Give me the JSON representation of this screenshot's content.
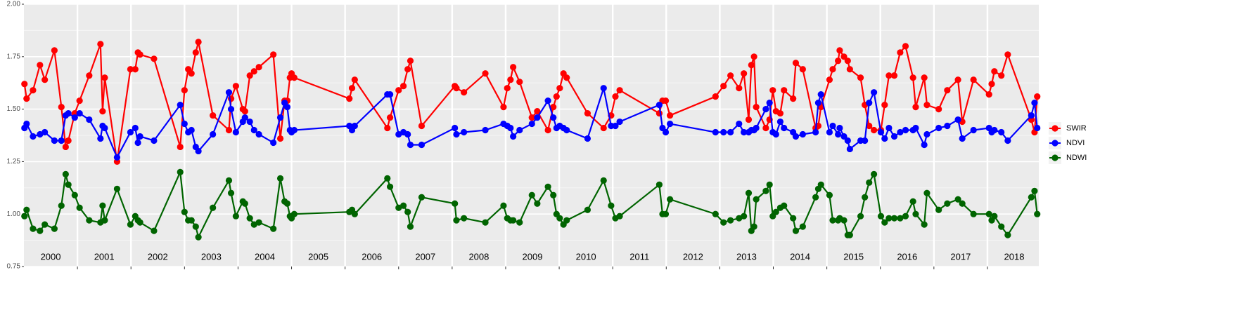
{
  "chart_data": {
    "type": "line",
    "x": [
      2000.01,
      2000.05,
      2000.17,
      2000.3,
      2000.39,
      2000.57,
      2000.7,
      2000.78,
      2000.83,
      2000.95,
      2001.04,
      2001.22,
      2001.43,
      2001.47,
      2001.51,
      2001.74,
      2001.99,
      2002.08,
      2002.13,
      2002.17,
      2002.43,
      2002.92,
      2003.0,
      2003.07,
      2003.13,
      2003.21,
      2003.26,
      2003.53,
      2003.83,
      2003.87,
      2003.96,
      2004.09,
      2004.13,
      2004.22,
      2004.3,
      2004.39,
      2004.66,
      2004.79,
      2004.87,
      2004.92,
      2004.97,
      2005.0,
      2005.05,
      2006.08,
      2006.13,
      2006.18,
      2006.79,
      2006.84,
      2007.0,
      2007.09,
      2007.17,
      2007.22,
      2007.43,
      2008.05,
      2008.08,
      2008.22,
      2008.62,
      2008.96,
      2009.03,
      2009.09,
      2009.14,
      2009.26,
      2009.49,
      2009.59,
      2009.79,
      2009.89,
      2009.95,
      2010.01,
      2010.08,
      2010.14,
      2010.53,
      2010.83,
      2010.97,
      2011.05,
      2011.13,
      2011.87,
      2011.93,
      2011.99,
      2012.07,
      2012.92,
      2013.07,
      2013.2,
      2013.36,
      2013.45,
      2013.54,
      2013.59,
      2013.64,
      2013.68,
      2013.86,
      2013.93,
      2013.99,
      2014.05,
      2014.13,
      2014.2,
      2014.37,
      2014.42,
      2014.55,
      2014.79,
      2014.84,
      2014.89,
      2015.05,
      2015.11,
      2015.21,
      2015.24,
      2015.32,
      2015.39,
      2015.43,
      2015.63,
      2015.71,
      2015.79,
      2015.88,
      2016.01,
      2016.08,
      2016.16,
      2016.26,
      2016.37,
      2016.47,
      2016.61,
      2016.66,
      2016.82,
      2016.87,
      2017.09,
      2017.25,
      2017.45,
      2017.53,
      2017.74,
      2018.03,
      2018.08,
      2018.13,
      2018.26,
      2018.38,
      2018.82,
      2018.88,
      2018.93
    ],
    "series": [
      {
        "name": "SWIR",
        "color": "#ff0000",
        "values": [
          1.62,
          1.55,
          1.59,
          1.71,
          1.64,
          1.78,
          1.51,
          1.32,
          1.35,
          1.48,
          1.54,
          1.66,
          1.81,
          1.49,
          1.65,
          1.25,
          1.69,
          1.69,
          1.77,
          1.76,
          1.74,
          1.32,
          1.59,
          1.69,
          1.67,
          1.77,
          1.82,
          1.47,
          1.4,
          1.55,
          1.61,
          1.5,
          1.49,
          1.66,
          1.68,
          1.7,
          1.76,
          1.36,
          1.54,
          1.54,
          1.65,
          1.67,
          1.65,
          1.55,
          1.6,
          1.64,
          1.41,
          1.46,
          1.59,
          1.61,
          1.69,
          1.73,
          1.42,
          1.61,
          1.6,
          1.58,
          1.67,
          1.51,
          1.6,
          1.64,
          1.7,
          1.63,
          1.46,
          1.49,
          1.4,
          1.51,
          1.56,
          1.6,
          1.67,
          1.65,
          1.48,
          1.41,
          1.47,
          1.56,
          1.59,
          1.48,
          1.54,
          1.54,
          1.47,
          1.56,
          1.61,
          1.66,
          1.6,
          1.67,
          1.45,
          1.71,
          1.75,
          1.51,
          1.41,
          1.45,
          1.59,
          1.49,
          1.48,
          1.59,
          1.55,
          1.72,
          1.69,
          1.41,
          1.42,
          1.51,
          1.64,
          1.69,
          1.73,
          1.78,
          1.75,
          1.73,
          1.69,
          1.65,
          1.52,
          1.42,
          1.4,
          1.4,
          1.52,
          1.66,
          1.66,
          1.77,
          1.8,
          1.65,
          1.51,
          1.65,
          1.52,
          1.5,
          1.59,
          1.64,
          1.44,
          1.64,
          1.57,
          1.62,
          1.68,
          1.66,
          1.76,
          1.45,
          1.39,
          1.56
        ]
      },
      {
        "name": "NDVI",
        "color": "#0000ff",
        "values": [
          1.41,
          1.43,
          1.37,
          1.38,
          1.39,
          1.35,
          1.35,
          1.47,
          1.48,
          1.46,
          1.48,
          1.45,
          1.36,
          1.42,
          1.41,
          1.27,
          1.39,
          1.41,
          1.34,
          1.37,
          1.35,
          1.52,
          1.43,
          1.39,
          1.4,
          1.32,
          1.3,
          1.38,
          1.58,
          1.5,
          1.39,
          1.44,
          1.46,
          1.44,
          1.4,
          1.38,
          1.34,
          1.46,
          1.53,
          1.51,
          1.4,
          1.39,
          1.4,
          1.42,
          1.4,
          1.42,
          1.57,
          1.57,
          1.38,
          1.39,
          1.38,
          1.33,
          1.33,
          1.41,
          1.38,
          1.39,
          1.4,
          1.43,
          1.42,
          1.41,
          1.37,
          1.4,
          1.43,
          1.46,
          1.54,
          1.46,
          1.41,
          1.42,
          1.41,
          1.4,
          1.36,
          1.6,
          1.42,
          1.42,
          1.44,
          1.52,
          1.41,
          1.39,
          1.43,
          1.39,
          1.39,
          1.39,
          1.43,
          1.39,
          1.39,
          1.4,
          1.4,
          1.41,
          1.5,
          1.53,
          1.39,
          1.38,
          1.44,
          1.41,
          1.39,
          1.37,
          1.38,
          1.39,
          1.53,
          1.57,
          1.39,
          1.42,
          1.38,
          1.41,
          1.37,
          1.35,
          1.31,
          1.35,
          1.35,
          1.53,
          1.58,
          1.39,
          1.36,
          1.41,
          1.37,
          1.39,
          1.4,
          1.4,
          1.41,
          1.33,
          1.38,
          1.41,
          1.42,
          1.45,
          1.36,
          1.4,
          1.41,
          1.39,
          1.4,
          1.39,
          1.35,
          1.47,
          1.53,
          1.41
        ]
      },
      {
        "name": "NDWI",
        "color": "#006400",
        "values": [
          0.99,
          1.02,
          0.93,
          0.92,
          0.95,
          0.93,
          1.04,
          1.19,
          1.14,
          1.09,
          1.03,
          0.97,
          0.96,
          1.04,
          0.97,
          1.12,
          0.95,
          0.99,
          0.97,
          0.96,
          0.92,
          1.2,
          1.01,
          0.97,
          0.97,
          0.94,
          0.89,
          1.03,
          1.16,
          1.1,
          0.99,
          1.06,
          1.05,
          0.98,
          0.95,
          0.96,
          0.93,
          1.17,
          1.06,
          1.05,
          0.99,
          0.98,
          1.0,
          1.01,
          1.02,
          1.0,
          1.17,
          1.13,
          1.03,
          1.04,
          1.01,
          0.94,
          1.08,
          1.05,
          0.97,
          0.98,
          0.96,
          1.04,
          0.98,
          0.97,
          0.97,
          0.96,
          1.09,
          1.05,
          1.13,
          1.09,
          1.0,
          0.98,
          0.95,
          0.97,
          1.02,
          1.16,
          1.04,
          0.98,
          0.99,
          1.14,
          1.0,
          1.0,
          1.07,
          1.0,
          0.96,
          0.97,
          0.98,
          0.99,
          1.1,
          0.92,
          0.94,
          1.07,
          1.11,
          1.14,
          0.99,
          1.01,
          1.03,
          1.04,
          0.98,
          0.92,
          0.94,
          1.08,
          1.12,
          1.14,
          1.09,
          0.97,
          0.97,
          0.98,
          0.97,
          0.9,
          0.9,
          0.99,
          1.08,
          1.15,
          1.19,
          0.99,
          0.96,
          0.98,
          0.98,
          0.98,
          0.99,
          1.06,
          1.0,
          0.95,
          1.1,
          1.02,
          1.05,
          1.07,
          1.05,
          1.0,
          1.0,
          0.97,
          0.99,
          0.94,
          0.9,
          1.08,
          1.11,
          1.0
        ]
      }
    ],
    "xlim": [
      2000,
      2018.96
    ],
    "xticks": [
      2001,
      2002,
      2003,
      2004,
      2005,
      2006,
      2007,
      2008,
      2009,
      2010,
      2011,
      2012,
      2013,
      2014,
      2015,
      2016,
      2017,
      2018
    ],
    "year_labels": [
      {
        "value": 2000.5,
        "label": "2000"
      },
      {
        "value": 2001.5,
        "label": "2001"
      },
      {
        "value": 2002.5,
        "label": "2002"
      },
      {
        "value": 2003.5,
        "label": "2003"
      },
      {
        "value": 2004.5,
        "label": "2004"
      },
      {
        "value": 2005.5,
        "label": "2005"
      },
      {
        "value": 2006.5,
        "label": "2006"
      },
      {
        "value": 2007.5,
        "label": "2007"
      },
      {
        "value": 2008.5,
        "label": "2008"
      },
      {
        "value": 2009.5,
        "label": "2009"
      },
      {
        "value": 2010.5,
        "label": "2010"
      },
      {
        "value": 2011.5,
        "label": "2011"
      },
      {
        "value": 2012.5,
        "label": "2012"
      },
      {
        "value": 2013.5,
        "label": "2013"
      },
      {
        "value": 2014.5,
        "label": "2014"
      },
      {
        "value": 2015.5,
        "label": "2015"
      },
      {
        "value": 2016.5,
        "label": "2016"
      },
      {
        "value": 2017.5,
        "label": "2017"
      },
      {
        "value": 2018.5,
        "label": "2018"
      }
    ],
    "ylim": [
      0.75,
      2.0
    ],
    "yticks": [
      0.75,
      {
        "value": 1,
        "label": "1.00"
      },
      1.25,
      {
        "value": 1.5,
        "label": "1.50"
      },
      1.75,
      {
        "value": 2,
        "label": "2.00"
      }
    ],
    "yminor_ticks": [
      0.875,
      1.125,
      1.375,
      1.625,
      1.875
    ],
    "grid": true,
    "legend": "right"
  }
}
